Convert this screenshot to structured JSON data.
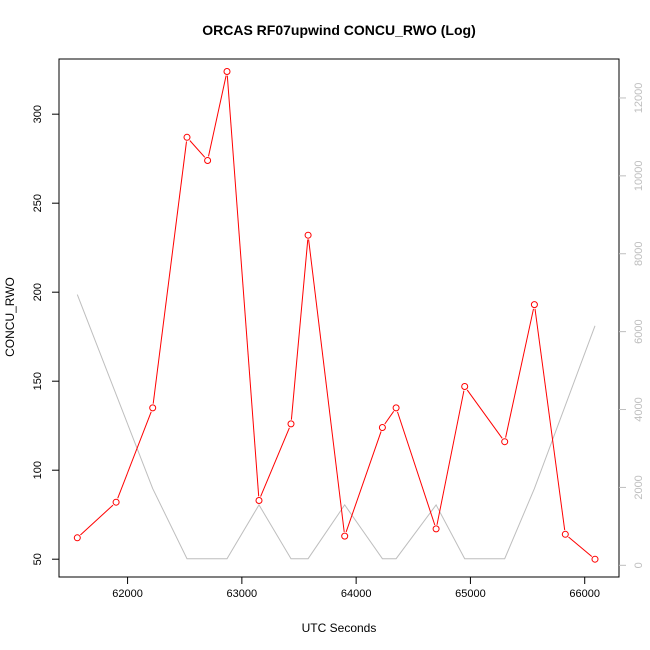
{
  "chart_data": {
    "type": "line",
    "title": "ORCAS RF07upwind CONCU_RWO (Log)",
    "xlabel": "UTC Seconds",
    "ylabel": "CONCU_RWO",
    "xlim": [
      61400,
      66300
    ],
    "ylim": [
      40,
      331
    ],
    "y2lim": [
      -300,
      13000
    ],
    "x_ticks": [
      62000,
      63000,
      64000,
      65000,
      66000
    ],
    "y_ticks": [
      50,
      100,
      150,
      200,
      250,
      300
    ],
    "y2_ticks": [
      0,
      2000,
      4000,
      6000,
      8000,
      10000,
      12000
    ],
    "x_tick_labels": [
      "62000",
      "63000",
      "64000",
      "65000",
      "66000"
    ],
    "y_tick_labels": [
      "50",
      "100",
      "150",
      "200",
      "250",
      "300"
    ],
    "y2_tick_labels": [
      "0",
      "2000",
      "4000",
      "6000",
      "8000",
      "10000",
      "12000"
    ],
    "colors": {
      "primary": "#ff0000",
      "secondary": "#bebebe",
      "axis": "#000000",
      "secondary_axis": "#bebebe"
    },
    "grid": false,
    "series": [
      {
        "axis": "left",
        "style": "line+points",
        "x": [
          61560,
          61900,
          62220,
          62520,
          62700,
          62870,
          63150,
          63430,
          63580,
          63900,
          64230,
          64350,
          64700,
          64950,
          65300,
          65560,
          65830,
          66090
        ],
        "values": [
          62,
          82,
          135,
          287,
          274,
          324,
          83,
          126,
          232,
          63,
          124,
          135,
          67,
          147,
          116,
          193,
          64,
          50
        ]
      },
      {
        "axis": "right",
        "style": "line",
        "x": [
          61560,
          62220,
          62520,
          62870,
          63150,
          63430,
          63580,
          63900,
          64230,
          64350,
          64700,
          64950,
          65300,
          65560,
          66090
        ],
        "values": [
          6950,
          1970,
          170,
          170,
          1550,
          170,
          170,
          1550,
          170,
          170,
          1550,
          170,
          170,
          1970,
          6150
        ]
      }
    ]
  }
}
